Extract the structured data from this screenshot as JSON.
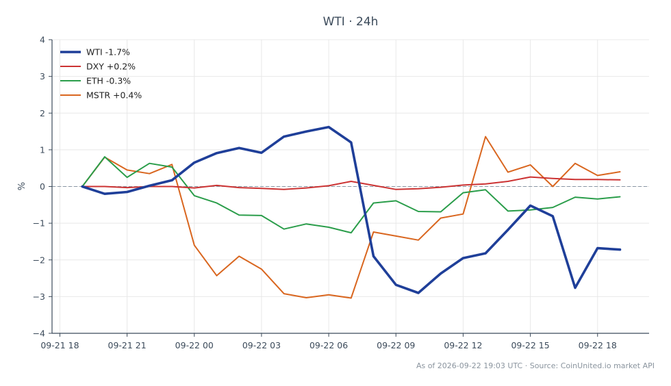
{
  "chart_data": {
    "type": "line",
    "title": "WTI · 24h",
    "ylabel": "%",
    "ylim": [
      -4,
      4
    ],
    "yticks": [
      -4,
      -3,
      -2,
      -1,
      0,
      1,
      2,
      3,
      4
    ],
    "ytick_labels": [
      "−4",
      "−3",
      "−2",
      "−1",
      "0",
      "1",
      "2",
      "3",
      "4"
    ],
    "xlim": [
      -0.35,
      26.3
    ],
    "xticks": [
      0,
      3,
      6,
      9,
      12,
      15,
      18,
      21,
      24
    ],
    "xtick_labels": [
      "09-21 18",
      "09-21 21",
      "09-22 00",
      "09-22 03",
      "09-22 06",
      "09-22 09",
      "09-22 12",
      "09-22 15",
      "09-22 18"
    ],
    "x": [
      1,
      2,
      3,
      4,
      5,
      6,
      7,
      8,
      9,
      10,
      11,
      12,
      13,
      14,
      15,
      16,
      17,
      18,
      19,
      20,
      21,
      22,
      23,
      24,
      25
    ],
    "grid": true,
    "zero_line": true,
    "legend_position": "top-left",
    "series": [
      {
        "name": "WTI -1.7%",
        "color": "#1f3f99",
        "width": 3.6,
        "values": [
          0.0,
          -0.2,
          -0.15,
          0.02,
          0.17,
          0.65,
          0.91,
          1.05,
          0.92,
          1.36,
          1.5,
          1.62,
          1.2,
          -1.9,
          -2.68,
          -2.9,
          -2.37,
          -1.95,
          -1.82,
          -1.18,
          -0.52,
          -0.81,
          -2.76,
          -1.68,
          -1.72
        ]
      },
      {
        "name": "DXY +0.2%",
        "color": "#cc3333",
        "width": 2,
        "values": [
          0.0,
          0.0,
          -0.03,
          0.0,
          0.0,
          -0.04,
          0.03,
          -0.03,
          -0.05,
          -0.08,
          -0.04,
          0.02,
          0.14,
          0.03,
          -0.08,
          -0.06,
          -0.02,
          0.04,
          0.07,
          0.14,
          0.26,
          0.22,
          0.19,
          0.19,
          0.18
        ]
      },
      {
        "name": "ETH -0.3%",
        "color": "#2a9d4a",
        "width": 2,
        "values": [
          0.0,
          0.81,
          0.25,
          0.63,
          0.53,
          -0.25,
          -0.45,
          -0.78,
          -0.79,
          -1.16,
          -1.02,
          -1.11,
          -1.26,
          -0.45,
          -0.39,
          -0.68,
          -0.69,
          -0.17,
          -0.09,
          -0.67,
          -0.64,
          -0.57,
          -0.29,
          -0.34,
          -0.28
        ]
      },
      {
        "name": "MSTR +0.4%",
        "color": "#d9661f",
        "width": 2,
        "values": [
          0.0,
          0.8,
          0.45,
          0.35,
          0.6,
          -1.6,
          -2.43,
          -1.9,
          -2.25,
          -2.92,
          -3.03,
          -2.95,
          -3.04,
          -1.24,
          -1.35,
          -1.46,
          -0.86,
          -0.75,
          1.36,
          0.39,
          0.59,
          0.0,
          0.63,
          0.3,
          0.4
        ]
      }
    ],
    "footer": "As of 2026-09-22 19:03 UTC · Source: CoinUnited.io market API"
  }
}
